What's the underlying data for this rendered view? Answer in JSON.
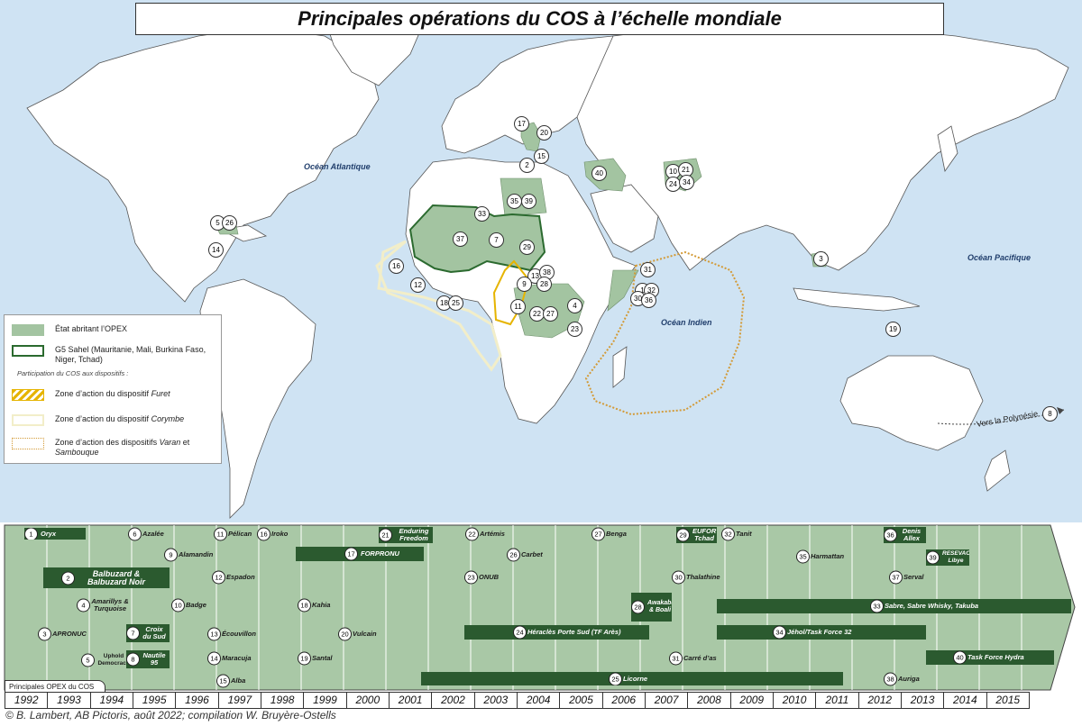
{
  "title": "Principales opérations du COS à l’échelle mondiale",
  "oceans": {
    "atlantic": "Océan Atlantique",
    "pacific": "Océan Pacifique",
    "indian": "Océan Indien"
  },
  "polynesia_label": "Vers la Polynésie",
  "colors": {
    "ocean": "#cfe3f3",
    "land": "#ffffff",
    "opex": "#a3c4a1",
    "g5_border": "#2b6a2f",
    "timeline_bg": "#a9c8a6",
    "op_bar": "#2b5a2f",
    "furet": "#e6b400",
    "corymbe": "#f2eec9",
    "varan": "#d39a36"
  },
  "legend": {
    "opex": "État abritant l’OPEX",
    "g5": "G5 Sahel (Mauritanie, Mali, Burkina Faso, Niger, Tchad)",
    "participation": "Participation du COS aux dispositifs :",
    "furet_prefix": "Zone d’action du dispositif ",
    "furet_name": "Furet",
    "corymbe_prefix": "Zone d’action du dispositif ",
    "corymbe_name": "Corymbe",
    "varan_prefix": "Zone d’action des dispositifs ",
    "varan_name1": "Varan",
    "varan_mid": " et ",
    "varan_name2": "Sambouque"
  },
  "map_markers": [
    {
      "n": "17"
    },
    {
      "n": "20"
    },
    {
      "n": "15"
    },
    {
      "n": "2"
    },
    {
      "n": "40"
    },
    {
      "n": "10"
    },
    {
      "n": "21"
    },
    {
      "n": "24"
    },
    {
      "n": "34"
    },
    {
      "n": "35"
    },
    {
      "n": "39"
    },
    {
      "n": "33"
    },
    {
      "n": "37"
    },
    {
      "n": "7"
    },
    {
      "n": "29"
    },
    {
      "n": "5"
    },
    {
      "n": "26"
    },
    {
      "n": "14"
    },
    {
      "n": "16"
    },
    {
      "n": "12"
    },
    {
      "n": "18"
    },
    {
      "n": "25"
    },
    {
      "n": "13"
    },
    {
      "n": "38"
    },
    {
      "n": "9"
    },
    {
      "n": "28"
    },
    {
      "n": "11"
    },
    {
      "n": "22"
    },
    {
      "n": "27"
    },
    {
      "n": "4"
    },
    {
      "n": "23"
    },
    {
      "n": "31"
    },
    {
      "n": "1"
    },
    {
      "n": "32"
    },
    {
      "n": "30"
    },
    {
      "n": "36"
    },
    {
      "n": "3"
    },
    {
      "n": "19"
    },
    {
      "n": "8"
    }
  ],
  "timeline": {
    "tab_label": "Principales OPEX du COS",
    "years": [
      "1992",
      "1993",
      "1994",
      "1995",
      "1996",
      "1997",
      "1998",
      "1999",
      "2000",
      "2001",
      "2002",
      "2003",
      "2004",
      "2005",
      "2006",
      "2007",
      "2008",
      "2009",
      "2010",
      "2011",
      "2012",
      "2013",
      "2014",
      "2015"
    ],
    "operations": [
      {
        "n": "1",
        "name": "Oryx"
      },
      {
        "n": "2",
        "name": "Balbuzard & Balbuzard Noir"
      },
      {
        "n": "3",
        "name": "APRONUC"
      },
      {
        "n": "4",
        "name": "Amarillys & Turquoise"
      },
      {
        "n": "5",
        "name": "Uphold Democracy"
      },
      {
        "n": "6",
        "name": "Azalée"
      },
      {
        "n": "7",
        "name": "Croix du Sud"
      },
      {
        "n": "8",
        "name": "Nautile 95"
      },
      {
        "n": "9",
        "name": "Alamandin"
      },
      {
        "n": "10",
        "name": "Badge"
      },
      {
        "n": "11",
        "name": "Pélican"
      },
      {
        "n": "12",
        "name": "Espadon"
      },
      {
        "n": "13",
        "name": "Écouvillon"
      },
      {
        "n": "14",
        "name": "Maracuja"
      },
      {
        "n": "15",
        "name": "Alba"
      },
      {
        "n": "16",
        "name": "Iroko"
      },
      {
        "n": "17",
        "name": "FORPRONU"
      },
      {
        "n": "18",
        "name": "Kahia"
      },
      {
        "n": "19",
        "name": "Santal"
      },
      {
        "n": "20",
        "name": "Vulcain"
      },
      {
        "n": "21",
        "name": "Enduring Freedom"
      },
      {
        "n": "22",
        "name": "Artémis"
      },
      {
        "n": "23",
        "name": "ONUB"
      },
      {
        "n": "24",
        "name": "Héraclès Porte Sud (TF Arès)"
      },
      {
        "n": "25",
        "name": "Licorne"
      },
      {
        "n": "26",
        "name": "Carbet"
      },
      {
        "n": "27",
        "name": "Benga"
      },
      {
        "n": "28",
        "name": "Awakaba & Boali"
      },
      {
        "n": "29",
        "name": "EUFOR Tchad"
      },
      {
        "n": "30",
        "name": "Thalathine"
      },
      {
        "n": "31",
        "name": "Carré d’as"
      },
      {
        "n": "32",
        "name": "Tanit"
      },
      {
        "n": "33",
        "name": "Sabre, Sabre Whisky, Takuba"
      },
      {
        "n": "34",
        "name": "Jéhol/Task Force 32"
      },
      {
        "n": "35",
        "name": "Harmattan"
      },
      {
        "n": "36",
        "name": "Denis Allex"
      },
      {
        "n": "37",
        "name": "Serval"
      },
      {
        "n": "38",
        "name": "Auriga"
      },
      {
        "n": "39",
        "name": "RESEVAC Libye"
      },
      {
        "n": "40",
        "name": "Task Force Hydra"
      }
    ]
  },
  "copyright": "© B. Lambert, AB Pictoris, août 2022; compilation W. Bruyère-Ostells"
}
